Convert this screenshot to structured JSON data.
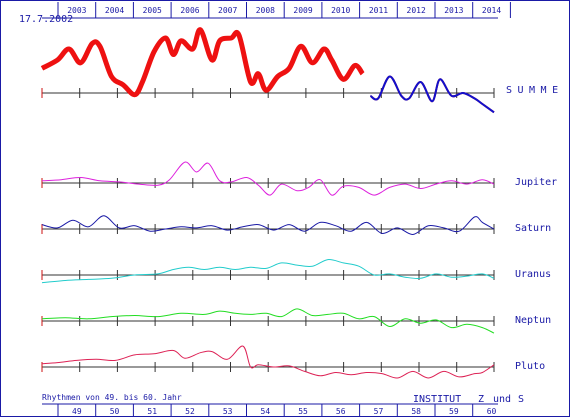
{
  "date_label": "17.7.2002",
  "footer": {
    "rhythm_label": "Rhythmen von 49. bis 60. Jahr",
    "institute_label": "INSTITUT",
    "z_label": "Z",
    "und_label": "und",
    "s_label": "S"
  },
  "chart_data": {
    "type": "line",
    "top_axis_years": [
      "2003",
      "2004",
      "2005",
      "2006",
      "2007",
      "2008",
      "2009",
      "2010",
      "2011",
      "2012",
      "2013",
      "2014"
    ],
    "bottom_axis_ages": [
      "49",
      "50",
      "51",
      "52",
      "53",
      "54",
      "55",
      "56",
      "57",
      "58",
      "59",
      "60"
    ],
    "colors": {
      "frame": "#1a1aa6",
      "summe_past": "#ee1111",
      "summe_future": "#1111cc",
      "Jupiter": "#dd22dd",
      "Saturn": "#1a1aa6",
      "Uranus": "#22cccc",
      "Neptun": "#22dd22",
      "Pluto": "#dd2255"
    },
    "summe_split_year": 2011,
    "series": [
      {
        "name": "SUMME",
        "x": [
          2002.6,
          2003.0,
          2003.3,
          2003.6,
          2003.9,
          2004.1,
          2004.4,
          2004.7,
          2005.0,
          2005.2,
          2005.5,
          2005.8,
          2006.0,
          2006.2,
          2006.5,
          2006.7,
          2007.0,
          2007.2,
          2007.5,
          2007.7,
          2008.0,
          2008.2,
          2008.4,
          2008.7,
          2009.0,
          2009.3,
          2009.6,
          2009.9,
          2010.1,
          2010.4,
          2010.7,
          2010.9,
          2011.1,
          2011.3,
          2011.6,
          2011.9,
          2012.1,
          2012.4,
          2012.7,
          2012.9,
          2013.2,
          2013.5,
          2013.8,
          2014.0,
          2014.3
        ],
        "values": [
          0.45,
          0.6,
          0.8,
          0.55,
          0.9,
          0.85,
          0.3,
          0.15,
          -0.03,
          0.2,
          0.75,
          1.0,
          0.7,
          0.95,
          0.8,
          1.15,
          0.6,
          0.95,
          1.0,
          1.05,
          0.2,
          0.35,
          0.05,
          0.3,
          0.45,
          0.85,
          0.55,
          0.8,
          0.6,
          0.25,
          0.5,
          0.35,
          -0.05,
          -0.1,
          0.3,
          -0.05,
          -0.1,
          0.2,
          -0.15,
          0.25,
          -0.05,
          0.0,
          -0.1,
          -0.2,
          -0.35
        ]
      },
      {
        "name": "Jupiter",
        "x": [
          2002.6,
          2003.1,
          2003.6,
          2004.1,
          2004.6,
          2005.1,
          2005.6,
          2005.9,
          2006.3,
          2006.6,
          2006.9,
          2007.2,
          2007.5,
          2007.9,
          2008.2,
          2008.5,
          2008.8,
          2009.2,
          2009.5,
          2009.8,
          2010.1,
          2010.4,
          2010.8,
          2011.2,
          2011.6,
          2012.0,
          2012.4,
          2012.8,
          2013.2,
          2013.6,
          2014.0,
          2014.3
        ],
        "values": [
          0.1,
          0.15,
          0.25,
          0.1,
          0.05,
          -0.05,
          -0.1,
          0.15,
          0.95,
          0.5,
          0.9,
          0.1,
          0.05,
          0.25,
          -0.1,
          -0.55,
          -0.05,
          -0.35,
          -0.2,
          0.15,
          -0.55,
          -0.15,
          -0.2,
          -0.55,
          -0.2,
          -0.05,
          -0.25,
          -0.05,
          0.1,
          -0.05,
          0.15,
          -0.05
        ]
      },
      {
        "name": "Saturn",
        "x": [
          2002.6,
          2003.0,
          2003.4,
          2003.8,
          2004.2,
          2004.6,
          2005.0,
          2005.4,
          2005.8,
          2006.2,
          2006.6,
          2007.0,
          2007.4,
          2007.8,
          2008.2,
          2008.6,
          2009.0,
          2009.4,
          2009.8,
          2010.2,
          2010.6,
          2011.0,
          2011.4,
          2011.8,
          2012.2,
          2012.6,
          2013.0,
          2013.4,
          2013.8,
          2014.0,
          2014.3
        ],
        "values": [
          0.2,
          0.05,
          0.4,
          0.1,
          0.6,
          0.05,
          0.15,
          -0.1,
          0.0,
          0.1,
          0.05,
          0.15,
          -0.05,
          0.1,
          0.2,
          -0.05,
          0.2,
          -0.1,
          0.3,
          0.15,
          -0.1,
          0.3,
          -0.2,
          0.05,
          -0.25,
          0.15,
          0.05,
          -0.1,
          0.55,
          0.3,
          0.0
        ]
      },
      {
        "name": "Uranus",
        "x": [
          2002.6,
          2003.2,
          2003.8,
          2004.4,
          2005.0,
          2005.6,
          2006.0,
          2006.4,
          2006.8,
          2007.2,
          2007.6,
          2008.0,
          2008.4,
          2008.8,
          2009.2,
          2009.6,
          2010.0,
          2010.4,
          2010.8,
          2011.2,
          2011.6,
          2012.0,
          2012.4,
          2012.8,
          2013.2,
          2013.6,
          2014.0,
          2014.3
        ],
        "values": [
          -0.35,
          -0.25,
          -0.2,
          -0.15,
          0.0,
          0.05,
          0.25,
          0.35,
          0.25,
          0.35,
          0.25,
          0.35,
          0.3,
          0.55,
          0.45,
          0.4,
          0.7,
          0.55,
          0.4,
          0.0,
          0.05,
          -0.1,
          -0.15,
          0.05,
          -0.1,
          -0.05,
          0.05,
          -0.15
        ]
      },
      {
        "name": "Neptun",
        "x": [
          2002.6,
          2003.2,
          2003.8,
          2004.4,
          2005.0,
          2005.6,
          2006.2,
          2006.8,
          2007.2,
          2007.6,
          2008.0,
          2008.4,
          2008.8,
          2009.2,
          2009.6,
          2010.0,
          2010.4,
          2010.8,
          2011.2,
          2011.6,
          2012.0,
          2012.4,
          2012.8,
          2013.2,
          2013.6,
          2014.0,
          2014.3
        ],
        "values": [
          0.1,
          0.15,
          0.1,
          0.2,
          0.25,
          0.2,
          0.35,
          0.3,
          0.45,
          0.35,
          0.3,
          0.35,
          0.2,
          0.55,
          0.25,
          0.3,
          0.35,
          0.1,
          0.2,
          -0.25,
          0.1,
          -0.1,
          0.05,
          -0.3,
          -0.15,
          -0.3,
          -0.55
        ]
      },
      {
        "name": "Pluto",
        "x": [
          2002.6,
          2003.0,
          2003.5,
          2004.0,
          2004.5,
          2005.0,
          2005.5,
          2006.0,
          2006.3,
          2006.7,
          2007.0,
          2007.4,
          2007.8,
          2008.0,
          2008.2,
          2008.6,
          2009.0,
          2009.4,
          2009.8,
          2010.2,
          2010.6,
          2011.0,
          2011.4,
          2011.8,
          2012.2,
          2012.6,
          2013.0,
          2013.4,
          2013.8,
          2014.0,
          2014.3
        ],
        "values": [
          0.15,
          0.2,
          0.3,
          0.35,
          0.3,
          0.55,
          0.6,
          0.75,
          0.4,
          0.65,
          0.7,
          0.35,
          0.95,
          0.0,
          0.1,
          0.0,
          0.05,
          -0.2,
          -0.4,
          -0.25,
          -0.35,
          -0.25,
          -0.3,
          -0.5,
          -0.2,
          -0.5,
          -0.2,
          -0.45,
          -0.3,
          -0.25,
          0.1
        ]
      }
    ]
  }
}
